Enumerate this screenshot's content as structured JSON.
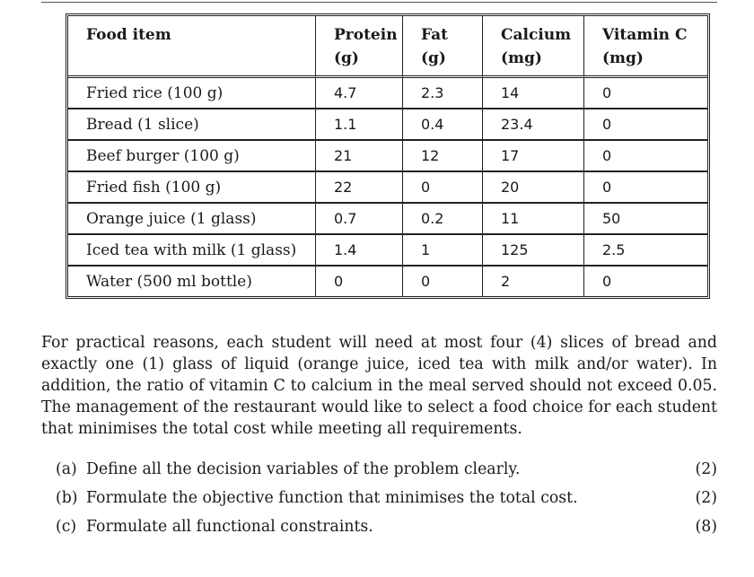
{
  "table": {
    "headers": [
      {
        "line1": "Food item",
        "line2": ""
      },
      {
        "line1": "Protein",
        "line2": "(g)"
      },
      {
        "line1": "Fat",
        "line2": "(g)"
      },
      {
        "line1": "Calcium",
        "line2": "(mg)"
      },
      {
        "line1": "Vitamin C",
        "line2": "(mg)"
      }
    ],
    "rows": [
      {
        "food": "Fried rice (100 g)",
        "protein": "4.7",
        "fat": "2.3",
        "calcium": "14",
        "vitamin_c": "0"
      },
      {
        "food": "Bread (1 slice)",
        "protein": "1.1",
        "fat": "0.4",
        "calcium": "23.4",
        "vitamin_c": "0"
      },
      {
        "food": "Beef burger (100 g)",
        "protein": "21",
        "fat": "12",
        "calcium": "17",
        "vitamin_c": "0"
      },
      {
        "food": "Fried fish (100 g)",
        "protein": "22",
        "fat": "0",
        "calcium": "20",
        "vitamin_c": "0"
      },
      {
        "food": "Orange juice (1 glass)",
        "protein": "0.7",
        "fat": "0.2",
        "calcium": "11",
        "vitamin_c": "50"
      },
      {
        "food": "Iced tea with milk (1 glass)",
        "protein": "1.4",
        "fat": "1",
        "calcium": "125",
        "vitamin_c": "2.5"
      },
      {
        "food": "Water (500 ml bottle)",
        "protein": "0",
        "fat": "0",
        "calcium": "2",
        "vitamin_c": "0"
      }
    ]
  },
  "paragraph": "For practical reasons, each student will need at most four (4) slices of bread and exactly one (1) glass of liquid (orange juice, iced tea with milk and/or water). In addition, the ratio of vitamin C to calcium in the meal served should not exceed 0.05. The management of the restaurant would like to select a food choice for each student that minimises the total cost while meeting all requirements.",
  "questions": [
    {
      "label": "(a)",
      "text": "Define all the decision variables of the problem clearly.",
      "marks": "(2)"
    },
    {
      "label": "(b)",
      "text": "Formulate the objective function that minimises the total cost.",
      "marks": "(2)"
    },
    {
      "label": "(c)",
      "text": "Formulate all functional constraints.",
      "marks": "(8)"
    }
  ]
}
